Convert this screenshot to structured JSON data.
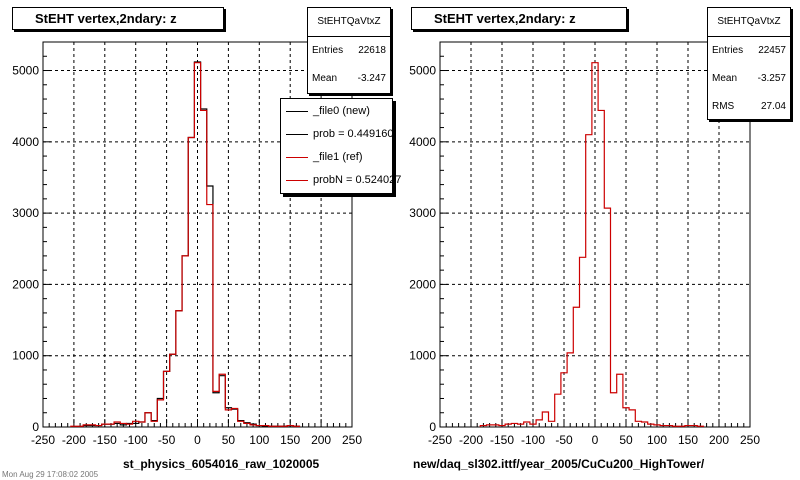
{
  "pads": [
    {
      "title": "StEHT  vertex,2ndary: z",
      "x_title": "st_physics_6054016_raw_1020005",
      "stats": {
        "name": "StEHTQaVtxZ",
        "rows": [
          {
            "label": "Entries",
            "value": "22618"
          },
          {
            "label": "Mean",
            "value": "-3.247"
          }
        ]
      },
      "legend": [
        {
          "text": "_file0 (new)",
          "color": "#000000"
        },
        {
          "text": "prob = 0.449160",
          "color": "#000000"
        },
        {
          "text": "_file1 (ref)",
          "color": "#cc0000"
        },
        {
          "text": "probN = 0.524027",
          "color": "#cc0000"
        }
      ]
    },
    {
      "title": "StEHT  vertex,2ndary: z",
      "x_title": "new/daq_sl302.ittf/year_2005/CuCu200_HighTower/",
      "stats": {
        "name": "StEHTQaVtxZ",
        "rows": [
          {
            "label": "Entries",
            "value": "22457"
          },
          {
            "label": "Mean",
            "value": "-3.257"
          },
          {
            "label": "RMS",
            "value": "27.04"
          }
        ]
      },
      "legend": []
    }
  ],
  "footer": "Mon Aug 29 17:08:02 2005",
  "chart_data": [
    {
      "type": "histogram",
      "xlim": [
        -250,
        250
      ],
      "ylim": [
        0,
        5400
      ],
      "grid": true,
      "x_ticks": [
        -250,
        -200,
        -150,
        -100,
        -50,
        0,
        50,
        100,
        150,
        200,
        250
      ],
      "y_ticks": [
        0,
        1000,
        2000,
        3000,
        4000,
        5000
      ],
      "bin_width": 10,
      "series": [
        {
          "color": "#000000",
          "bins": [
            {
              "x": -180,
              "y": 20
            },
            {
              "x": -170,
              "y": 20
            },
            {
              "x": -160,
              "y": 20
            },
            {
              "x": -150,
              "y": 40
            },
            {
              "x": -140,
              "y": 40
            },
            {
              "x": -130,
              "y": 50
            },
            {
              "x": -120,
              "y": 30
            },
            {
              "x": -110,
              "y": 50
            },
            {
              "x": -100,
              "y": 50
            },
            {
              "x": -90,
              "y": 70
            },
            {
              "x": -80,
              "y": 200
            },
            {
              "x": -70,
              "y": 90
            },
            {
              "x": -60,
              "y": 400
            },
            {
              "x": -50,
              "y": 780
            },
            {
              "x": -40,
              "y": 1020
            },
            {
              "x": -30,
              "y": 1630
            },
            {
              "x": -20,
              "y": 2400
            },
            {
              "x": -10,
              "y": 4060
            },
            {
              "x": 0,
              "y": 5120
            },
            {
              "x": 10,
              "y": 4460
            },
            {
              "x": 20,
              "y": 3380
            },
            {
              "x": 30,
              "y": 480
            },
            {
              "x": 40,
              "y": 720
            },
            {
              "x": 50,
              "y": 270
            },
            {
              "x": 60,
              "y": 250
            },
            {
              "x": 70,
              "y": 90
            },
            {
              "x": 80,
              "y": 60
            },
            {
              "x": 90,
              "y": 40
            },
            {
              "x": 100,
              "y": 20
            },
            {
              "x": 110,
              "y": 15
            },
            {
              "x": 120,
              "y": 10
            },
            {
              "x": 130,
              "y": 10
            },
            {
              "x": 140,
              "y": 10
            },
            {
              "x": 150,
              "y": 20
            },
            {
              "x": 160,
              "y": 10
            }
          ]
        },
        {
          "color": "#cc0000",
          "bins": [
            {
              "x": -200,
              "y": 10
            },
            {
              "x": -190,
              "y": 10
            },
            {
              "x": -180,
              "y": 30
            },
            {
              "x": -170,
              "y": 30
            },
            {
              "x": -160,
              "y": 20
            },
            {
              "x": -150,
              "y": 40
            },
            {
              "x": -140,
              "y": 40
            },
            {
              "x": -130,
              "y": 70
            },
            {
              "x": -120,
              "y": 50
            },
            {
              "x": -110,
              "y": 40
            },
            {
              "x": -100,
              "y": 80
            },
            {
              "x": -90,
              "y": 70
            },
            {
              "x": -80,
              "y": 200
            },
            {
              "x": -70,
              "y": 80
            },
            {
              "x": -60,
              "y": 380
            },
            {
              "x": -50,
              "y": 780
            },
            {
              "x": -40,
              "y": 1020
            },
            {
              "x": -30,
              "y": 1630
            },
            {
              "x": -20,
              "y": 2400
            },
            {
              "x": -10,
              "y": 4060
            },
            {
              "x": 0,
              "y": 5110
            },
            {
              "x": 10,
              "y": 4440
            },
            {
              "x": 20,
              "y": 3120
            },
            {
              "x": 30,
              "y": 500
            },
            {
              "x": 40,
              "y": 740
            },
            {
              "x": 50,
              "y": 240
            },
            {
              "x": 60,
              "y": 260
            },
            {
              "x": 70,
              "y": 80
            },
            {
              "x": 80,
              "y": 50
            },
            {
              "x": 90,
              "y": 30
            },
            {
              "x": 100,
              "y": 20
            },
            {
              "x": 110,
              "y": 20
            },
            {
              "x": 120,
              "y": 10
            },
            {
              "x": 130,
              "y": 10
            },
            {
              "x": 140,
              "y": 10
            },
            {
              "x": 150,
              "y": 20
            },
            {
              "x": 160,
              "y": 10
            }
          ]
        }
      ]
    },
    {
      "type": "histogram",
      "xlim": [
        -250,
        250
      ],
      "ylim": [
        0,
        5400
      ],
      "grid": true,
      "x_ticks": [
        -250,
        -200,
        -150,
        -100,
        -50,
        0,
        50,
        100,
        150,
        200,
        250
      ],
      "y_ticks": [
        0,
        1000,
        2000,
        3000,
        4000,
        5000
      ],
      "bin_width": 10,
      "series": [
        {
          "color": "#cc0000",
          "bins": [
            {
              "x": -180,
              "y": 20
            },
            {
              "x": -170,
              "y": 30
            },
            {
              "x": -160,
              "y": 30
            },
            {
              "x": -150,
              "y": 20
            },
            {
              "x": -140,
              "y": 40
            },
            {
              "x": -130,
              "y": 50
            },
            {
              "x": -120,
              "y": 40
            },
            {
              "x": -110,
              "y": 70
            },
            {
              "x": -100,
              "y": 40
            },
            {
              "x": -90,
              "y": 100
            },
            {
              "x": -80,
              "y": 210
            },
            {
              "x": -70,
              "y": 80
            },
            {
              "x": -60,
              "y": 460
            },
            {
              "x": -50,
              "y": 760
            },
            {
              "x": -40,
              "y": 1040
            },
            {
              "x": -30,
              "y": 1680
            },
            {
              "x": -20,
              "y": 2380
            },
            {
              "x": -10,
              "y": 4100
            },
            {
              "x": 0,
              "y": 5110
            },
            {
              "x": 10,
              "y": 4440
            },
            {
              "x": 20,
              "y": 3070
            },
            {
              "x": 30,
              "y": 480
            },
            {
              "x": 40,
              "y": 740
            },
            {
              "x": 50,
              "y": 270
            },
            {
              "x": 60,
              "y": 240
            },
            {
              "x": 70,
              "y": 80
            },
            {
              "x": 80,
              "y": 70
            },
            {
              "x": 90,
              "y": 40
            },
            {
              "x": 100,
              "y": 30
            },
            {
              "x": 110,
              "y": 20
            },
            {
              "x": 120,
              "y": 20
            },
            {
              "x": 130,
              "y": 10
            },
            {
              "x": 140,
              "y": 10
            },
            {
              "x": 150,
              "y": 20
            },
            {
              "x": 160,
              "y": 20
            },
            {
              "x": 170,
              "y": 10
            }
          ]
        }
      ]
    }
  ]
}
